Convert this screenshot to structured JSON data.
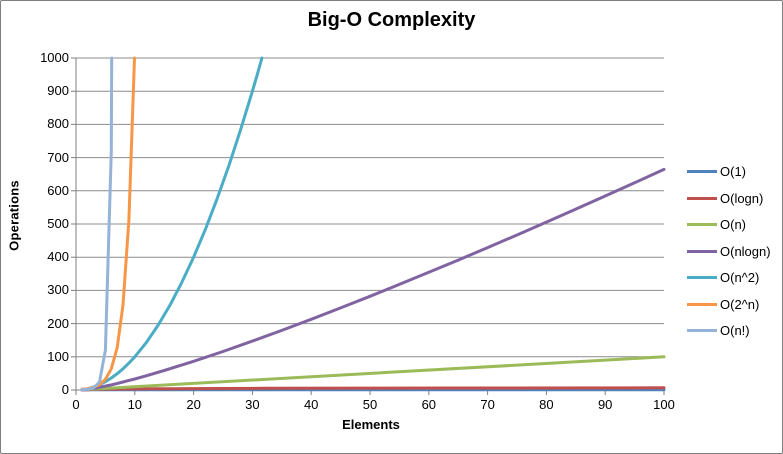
{
  "chart_data": {
    "type": "line",
    "title": "Big-O Complexity",
    "xlabel": "Elements",
    "ylabel": "Operations",
    "xlim": [
      0,
      100
    ],
    "ylim": [
      0,
      1000
    ],
    "xticks": [
      0,
      10,
      20,
      30,
      40,
      50,
      60,
      70,
      80,
      90,
      100
    ],
    "yticks": [
      0,
      100,
      200,
      300,
      400,
      500,
      600,
      700,
      800,
      900,
      1000
    ],
    "grid": "horizontal",
    "legend_position": "right",
    "grid_color": "#8c8c8c",
    "axis_color": "#7f7f7f",
    "series": [
      {
        "name": "O(1)",
        "color": "#4F81BD",
        "points": [
          [
            1,
            1
          ],
          [
            100,
            1
          ]
        ]
      },
      {
        "name": "O(logn)",
        "color": "#C0504D",
        "points": [
          [
            1,
            0
          ],
          [
            2,
            1
          ],
          [
            3,
            1.58
          ],
          [
            4,
            2
          ],
          [
            6,
            2.58
          ],
          [
            8,
            3
          ],
          [
            12,
            3.58
          ],
          [
            16,
            4
          ],
          [
            24,
            4.58
          ],
          [
            32,
            5
          ],
          [
            48,
            5.58
          ],
          [
            64,
            6
          ],
          [
            100,
            6.64
          ]
        ]
      },
      {
        "name": "O(n)",
        "color": "#9BBB59",
        "points": [
          [
            1,
            1
          ],
          [
            100,
            100
          ]
        ]
      },
      {
        "name": "O(nlogn)",
        "color": "#8064A2",
        "points": [
          [
            1,
            0
          ],
          [
            2,
            2
          ],
          [
            3,
            4.75
          ],
          [
            4,
            8
          ],
          [
            5,
            11.61
          ],
          [
            6,
            15.51
          ],
          [
            8,
            24
          ],
          [
            10,
            33.22
          ],
          [
            12,
            43.02
          ],
          [
            15,
            58.6
          ],
          [
            20,
            86.44
          ],
          [
            25,
            116.1
          ],
          [
            30,
            147.21
          ],
          [
            35,
            179.48
          ],
          [
            40,
            212.88
          ],
          [
            45,
            247.15
          ],
          [
            50,
            282.19
          ],
          [
            55,
            317.94
          ],
          [
            60,
            354.41
          ],
          [
            65,
            391.31
          ],
          [
            70,
            428.83
          ],
          [
            75,
            466.87
          ],
          [
            80,
            505.75
          ],
          [
            85,
            544.87
          ],
          [
            90,
            584.27
          ],
          [
            95,
            624.24
          ],
          [
            100,
            664.39
          ]
        ]
      },
      {
        "name": "O(n^2)",
        "color": "#4BACC6",
        "points": [
          [
            1,
            1
          ],
          [
            2,
            4
          ],
          [
            3,
            9
          ],
          [
            4,
            16
          ],
          [
            5,
            25
          ],
          [
            6,
            36
          ],
          [
            7,
            49
          ],
          [
            8,
            64
          ],
          [
            9,
            81
          ],
          [
            10,
            100
          ],
          [
            12,
            144
          ],
          [
            14,
            196
          ],
          [
            16,
            256
          ],
          [
            18,
            324
          ],
          [
            20,
            400
          ],
          [
            22,
            484
          ],
          [
            24,
            576
          ],
          [
            26,
            676
          ],
          [
            28,
            784
          ],
          [
            30,
            900
          ],
          [
            31,
            961
          ],
          [
            32,
            1024
          ]
        ]
      },
      {
        "name": "O(2^n)",
        "color": "#F79646",
        "points": [
          [
            1,
            2
          ],
          [
            2,
            4
          ],
          [
            3,
            8
          ],
          [
            4,
            16
          ],
          [
            5,
            32
          ],
          [
            6,
            64
          ],
          [
            7,
            128
          ],
          [
            8,
            256
          ],
          [
            9,
            512
          ],
          [
            10,
            1024
          ]
        ]
      },
      {
        "name": "O(n!)",
        "color": "#95B3D7",
        "points": [
          [
            1,
            1
          ],
          [
            2,
            2
          ],
          [
            3,
            6
          ],
          [
            4,
            24
          ],
          [
            5,
            120
          ],
          [
            6,
            720
          ],
          [
            7,
            5040
          ]
        ]
      }
    ]
  }
}
